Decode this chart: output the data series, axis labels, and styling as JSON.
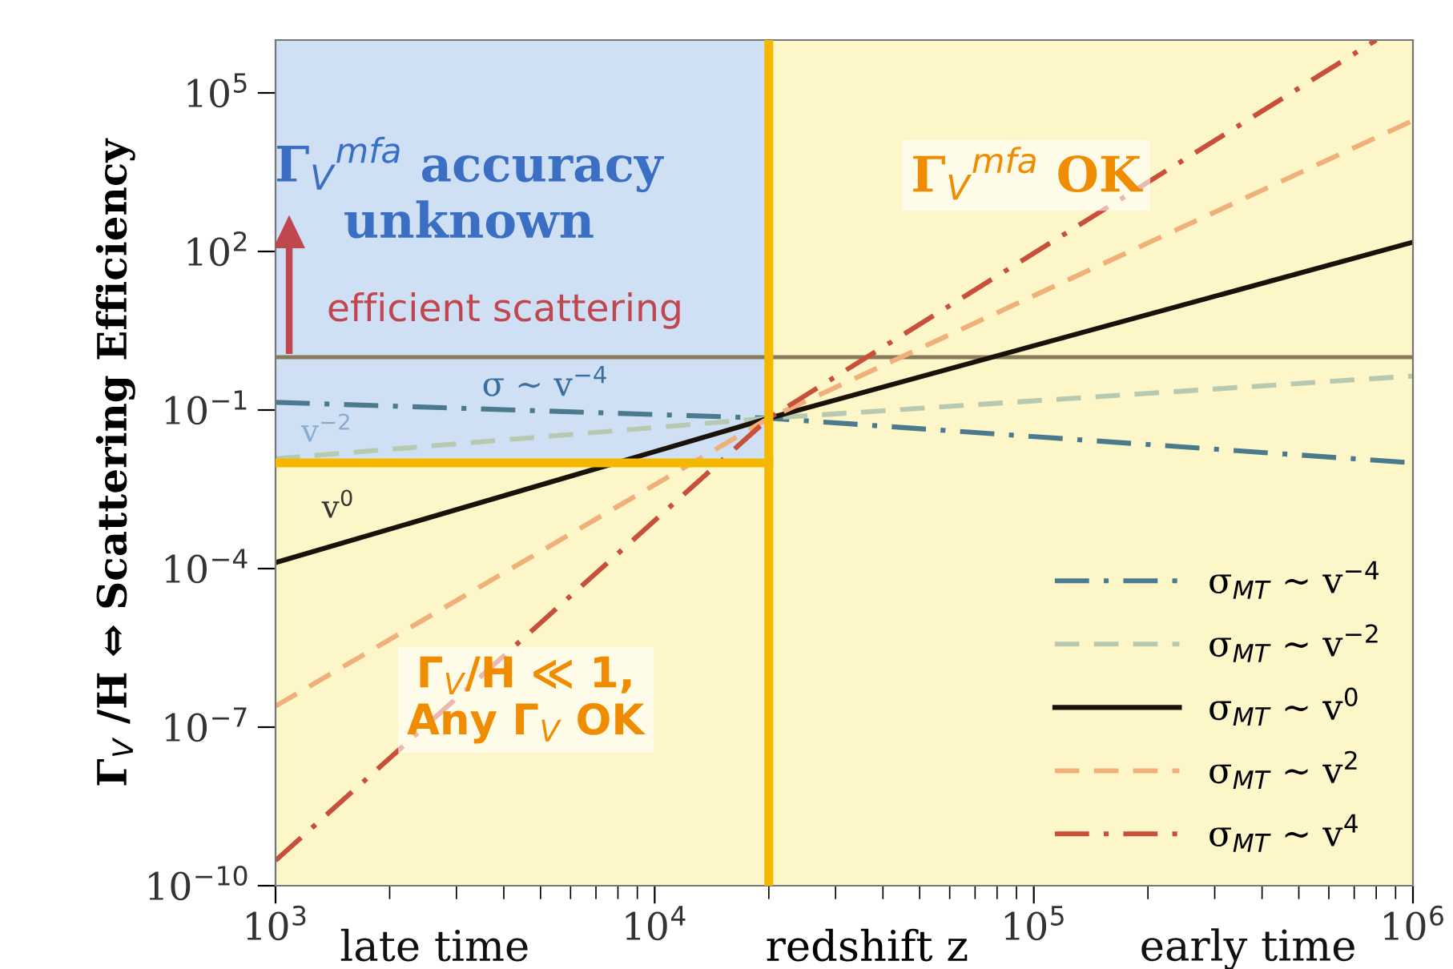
{
  "chart_data": {
    "type": "line",
    "xlabel": "redshift z",
    "ylabel": "Γ$_{V}$ /H ⇔ Scattering Efficiency",
    "x": [
      1000,
      20000,
      1000000
    ],
    "series": [
      {
        "name": "σ$_{MT}$ ∼ v$^{−4}$",
        "color": "#4a7a8c",
        "line_style": "dashdot",
        "values": [
          0.14,
          0.07,
          0.01
        ]
      },
      {
        "name": "σ$_{MT}$ ∼ v$^{−2}$",
        "color": "#b7c9b0",
        "line_style": "dashed",
        "values": [
          0.012,
          0.07,
          0.44
        ]
      },
      {
        "name": "σ$_{MT}$ ∼ v$^{0}$",
        "color": "#1a1208",
        "line_style": "solid",
        "values": [
          0.00013,
          0.07,
          150
        ]
      },
      {
        "name": "σ$_{MT}$ ∼ v$^{2}$",
        "color": "#f0b07a",
        "line_style": "dashed",
        "values": [
          2.5e-07,
          0.07,
          30000
        ]
      },
      {
        "x": [
          1000,
          20000,
          800000
        ],
        "name": "σ$_{MT}$ ∼ v$^{4}$",
        "color": "#c8503a",
        "line_style": "dashdot",
        "values": [
          3e-10,
          0.07,
          1000000
        ]
      }
    ],
    "log": "xy",
    "xlim": [
      1000,
      1000000
    ],
    "xticks": [
      {
        "value": 1000,
        "label": "10$^{3}$"
      },
      {
        "value": 10000,
        "label": "10$^{4}$"
      },
      {
        "value": 100000,
        "label": "10$^{5}$"
      },
      {
        "value": 1000000,
        "label": "10$^{6}$"
      }
    ],
    "ylim": [
      1e-10,
      1000000
    ],
    "yticks": [
      {
        "value": 1e-10,
        "label": "10$^{−10}$"
      },
      {
        "value": 1e-07,
        "label": "10$^{−7}$"
      },
      {
        "value": 0.0001,
        "label": "10$^{−4}$"
      },
      {
        "value": 0.1,
        "label": "10$^{−1}$"
      },
      {
        "value": 100,
        "label": "10$^{2}$"
      },
      {
        "value": 100000,
        "label": "10$^{5}$"
      }
    ],
    "ref_lines": [
      {
        "axis": "y",
        "value": 1,
        "color": "#8a7a5a"
      },
      {
        "axis": "x",
        "value": 20000,
        "color": "#f5b800"
      }
    ],
    "bands": [
      {
        "axis": "y",
        "from": 0.01,
        "to": 1000000,
        "color": "#cfe0f5"
      }
    ],
    "annotations": [
      "Γ$_{V}$$^{mfa}$ accuracy\nunknown",
      "efficient scattering",
      "Γ$_{V}$$^{mfa}$ OK",
      "Γ$_{V}$/H ≪ 1,\nAny Γ$_{V}$ OK",
      "late time",
      "early time",
      "σ ∼ v$^{−4}$",
      "v$^{−2}$",
      "v$^{0}$"
    ],
    "legend": "bottom right",
    "grid": false
  }
}
